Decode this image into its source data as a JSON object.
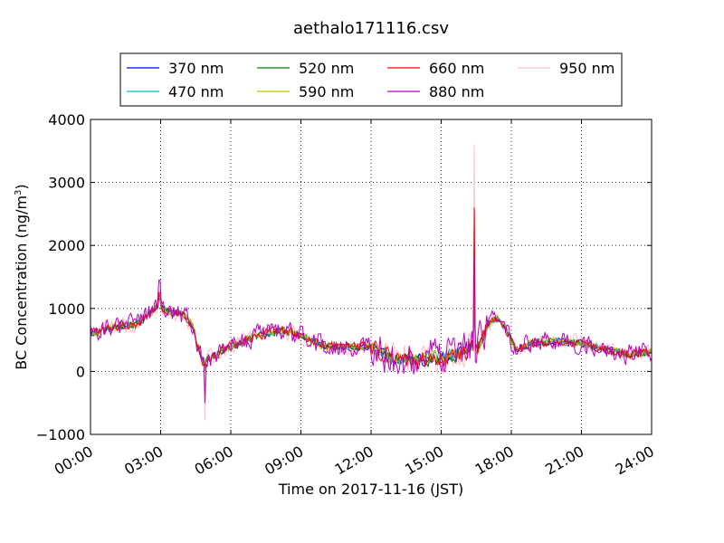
{
  "chart_data": {
    "type": "line",
    "title": "aethalo171116.csv",
    "xlabel": "Time on 2017-11-16 (JST)",
    "ylabel_main": "BC Concentration (ng/m",
    "ylabel_sup": "3",
    "ylabel_close": ")",
    "xlim_hours": [
      0,
      24
    ],
    "ylim": [
      -1000,
      4000
    ],
    "grid": true,
    "legend_placement": "top-center",
    "x_ticks": [
      {
        "hour": 0,
        "label": "00:00"
      },
      {
        "hour": 3,
        "label": "03:00"
      },
      {
        "hour": 6,
        "label": "06:00"
      },
      {
        "hour": 9,
        "label": "09:00"
      },
      {
        "hour": 12,
        "label": "12:00"
      },
      {
        "hour": 15,
        "label": "15:00"
      },
      {
        "hour": 18,
        "label": "18:00"
      },
      {
        "hour": 21,
        "label": "21:00"
      },
      {
        "hour": 24,
        "label": "24:00"
      }
    ],
    "y_ticks": [
      {
        "value": -1000,
        "label": "−1000"
      },
      {
        "value": 0,
        "label": "0"
      },
      {
        "value": 1000,
        "label": "1000"
      },
      {
        "value": 2000,
        "label": "2000"
      },
      {
        "value": 3000,
        "label": "3000"
      },
      {
        "value": 4000,
        "label": "4000"
      }
    ],
    "baseline_x_hours": [
      0,
      1,
      2,
      2.9,
      3.3,
      4,
      4.4,
      4.8,
      5.3,
      6,
      7,
      8,
      8.7,
      9.2,
      10,
      11,
      12,
      12.5,
      13,
      14,
      15,
      16,
      16.4,
      16.6,
      17,
      17.4,
      17.8,
      18.2,
      19,
      20,
      21,
      22,
      23,
      24
    ],
    "baseline_y": [
      600,
      700,
      750,
      1050,
      950,
      900,
      700,
      150,
      250,
      400,
      550,
      650,
      600,
      550,
      400,
      380,
      400,
      280,
      200,
      180,
      220,
      300,
      400,
      400,
      750,
      850,
      650,
      350,
      450,
      480,
      450,
      350,
      280,
      300
    ],
    "series": [
      {
        "name": "370 nm",
        "color": "#0000ff",
        "noise": 70,
        "spike": 1200,
        "dip": 0,
        "peak3": 1150
      },
      {
        "name": "470 nm",
        "color": "#00bfbf",
        "noise": 75,
        "spike": 1300,
        "dip": 0,
        "peak3": 1180
      },
      {
        "name": "520 nm",
        "color": "#008000",
        "noise": 80,
        "spike": 1400,
        "dip": 0,
        "peak3": 1200
      },
      {
        "name": "590 nm",
        "color": "#bfbf00",
        "noise": 90,
        "spike": 1500,
        "dip": 0,
        "peak3": 1220
      },
      {
        "name": "660 nm",
        "color": "#ff0000",
        "noise": 100,
        "spike": 2600,
        "dip": 100,
        "peak3": 1250
      },
      {
        "name": "880 nm",
        "color": "#bf00bf",
        "noise": 220,
        "spike": 1800,
        "dip": -500,
        "peak3": 1450
      },
      {
        "name": "950 nm",
        "color": "#ffc0cb",
        "noise": 170,
        "spike": 3600,
        "dip": -780,
        "peak3": 1300
      }
    ]
  }
}
